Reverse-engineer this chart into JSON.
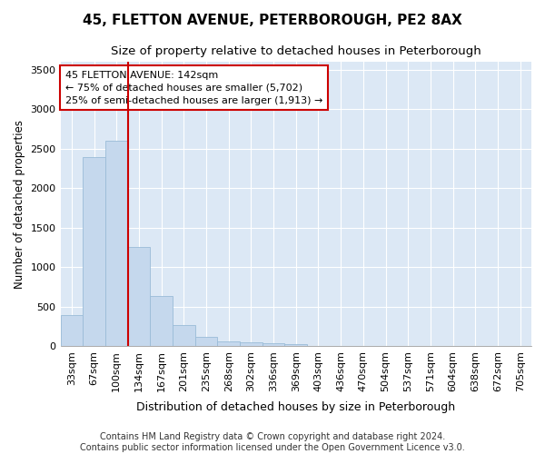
{
  "title": "45, FLETTON AVENUE, PETERBOROUGH, PE2 8AX",
  "subtitle": "Size of property relative to detached houses in Peterborough",
  "xlabel": "Distribution of detached houses by size in Peterborough",
  "ylabel": "Number of detached properties",
  "footer_line1": "Contains HM Land Registry data © Crown copyright and database right 2024.",
  "footer_line2": "Contains public sector information licensed under the Open Government Licence v3.0.",
  "categories": [
    "33sqm",
    "67sqm",
    "100sqm",
    "134sqm",
    "167sqm",
    "201sqm",
    "235sqm",
    "268sqm",
    "302sqm",
    "336sqm",
    "369sqm",
    "403sqm",
    "436sqm",
    "470sqm",
    "504sqm",
    "537sqm",
    "571sqm",
    "604sqm",
    "638sqm",
    "672sqm",
    "705sqm"
  ],
  "values": [
    390,
    2400,
    2600,
    1250,
    630,
    270,
    110,
    55,
    50,
    30,
    20,
    0,
    0,
    0,
    0,
    0,
    0,
    0,
    0,
    0,
    0
  ],
  "bar_color": "#c5d8ed",
  "bar_edge_color": "#9abcd8",
  "vline_x": 2.5,
  "vline_color": "#cc0000",
  "annotation_line1": "45 FLETTON AVENUE: 142sqm",
  "annotation_line2": "← 75% of detached houses are smaller (5,702)",
  "annotation_line3": "25% of semi-detached houses are larger (1,913) →",
  "annotation_box_facecolor": "#ffffff",
  "annotation_box_edgecolor": "#cc0000",
  "ylim": [
    0,
    3600
  ],
  "yticks": [
    0,
    500,
    1000,
    1500,
    2000,
    2500,
    3000,
    3500
  ],
  "fig_bg_color": "#ffffff",
  "plot_bg_color": "#dce8f5",
  "title_fontsize": 11,
  "subtitle_fontsize": 9.5,
  "xlabel_fontsize": 9,
  "ylabel_fontsize": 8.5,
  "tick_fontsize": 8,
  "footer_fontsize": 7
}
